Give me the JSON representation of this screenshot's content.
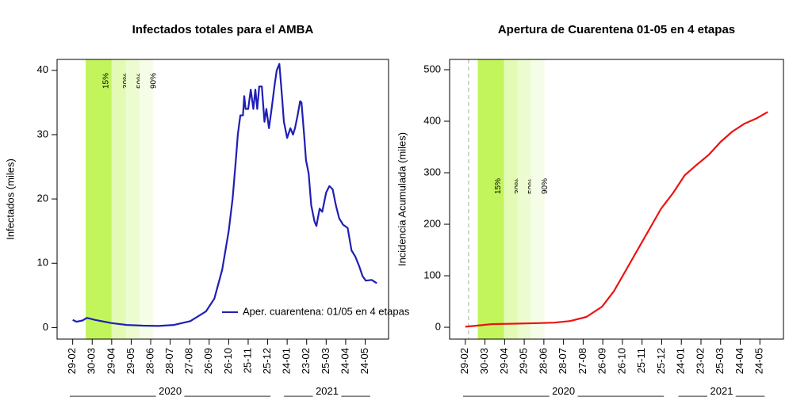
{
  "chart_data": [
    {
      "type": "line",
      "title": "Infectados totales para el AMBA",
      "y_label": "Infectados (miles)",
      "xlim": [
        -24,
        486
      ],
      "ylim": [
        -1.8,
        41.7
      ],
      "yticks": [
        0,
        10,
        20,
        30,
        40
      ],
      "xticks": [
        {
          "value": 0,
          "label": "29-02"
        },
        {
          "value": 30,
          "label": "30-03"
        },
        {
          "value": 60,
          "label": "29-04"
        },
        {
          "value": 90,
          "label": "29-05"
        },
        {
          "value": 120,
          "label": "28-06"
        },
        {
          "value": 150,
          "label": "28-07"
        },
        {
          "value": 180,
          "label": "27-08"
        },
        {
          "value": 210,
          "label": "26-09"
        },
        {
          "value": 240,
          "label": "26-10"
        },
        {
          "value": 270,
          "label": "25-11"
        },
        {
          "value": 300,
          "label": "25-12"
        },
        {
          "value": 330,
          "label": "24-01"
        },
        {
          "value": 360,
          "label": "23-02"
        },
        {
          "value": 390,
          "label": "25-03"
        },
        {
          "value": 420,
          "label": "24-04"
        },
        {
          "value": 450,
          "label": "24-05"
        }
      ],
      "year_labels": [
        "_______________ 2020 _______________",
        "_____ 2021 _____"
      ],
      "bands": [
        {
          "label": "15%",
          "start": 20,
          "end": 60,
          "color": "#c2f55c"
        },
        {
          "label": "30%",
          "start": 60,
          "end": 82,
          "color": "#e3fab5"
        },
        {
          "label": "50%",
          "start": 82,
          "end": 103,
          "color": "#edfcd0"
        },
        {
          "label": "90%",
          "start": 103,
          "end": 124,
          "color": "#f5fde8"
        }
      ],
      "legend": "bottom-right",
      "x": [
        0,
        6,
        15,
        22,
        34,
        59,
        83,
        108,
        132,
        156,
        181,
        205,
        218,
        230,
        240,
        246,
        251,
        254,
        258,
        262,
        264,
        266,
        270,
        274,
        278,
        281,
        284,
        287,
        291,
        295,
        298,
        302,
        306,
        311,
        314,
        318,
        322,
        325,
        330,
        335,
        339,
        342,
        346,
        350,
        352,
        356,
        359,
        363,
        367,
        372,
        375,
        380,
        384,
        390,
        395,
        400,
        405,
        410,
        416,
        423,
        429,
        435,
        441,
        446,
        451,
        460,
        468
      ],
      "series": [
        {
          "name": "Aper. cuarentena: 01/05 en 4 etapas",
          "color": "#1f1fb4",
          "values": [
            1.2,
            0.9,
            1.1,
            1.5,
            1.2,
            0.7,
            0.4,
            0.3,
            0.25,
            0.4,
            1.0,
            2.5,
            4.5,
            9,
            15,
            20,
            26,
            30,
            33,
            33,
            36,
            34,
            34,
            37,
            34,
            37,
            34,
            37.5,
            37.5,
            32,
            34,
            31,
            34,
            38,
            40,
            41,
            36,
            32,
            29.5,
            31,
            30,
            31,
            33,
            35.2,
            35,
            30,
            26,
            24,
            19,
            16.5,
            15.8,
            18.5,
            18,
            21,
            22,
            21.5,
            19,
            17,
            16,
            15.5,
            12,
            11,
            9.5,
            8,
            7.3,
            7.4,
            6.9
          ]
        }
      ]
    },
    {
      "type": "line",
      "title": "Apertura de Cuarentena 01-05 en 4 etapas",
      "y_label": "Incidencia Acumulada (miles)",
      "xlim": [
        -24,
        486
      ],
      "ylim": [
        -23,
        520
      ],
      "yticks": [
        0,
        100,
        200,
        300,
        400,
        500
      ],
      "xticks": [
        {
          "value": 0,
          "label": "29-02"
        },
        {
          "value": 30,
          "label": "30-03"
        },
        {
          "value": 60,
          "label": "29-04"
        },
        {
          "value": 90,
          "label": "29-05"
        },
        {
          "value": 120,
          "label": "28-06"
        },
        {
          "value": 150,
          "label": "28-07"
        },
        {
          "value": 180,
          "label": "27-08"
        },
        {
          "value": 210,
          "label": "26-09"
        },
        {
          "value": 240,
          "label": "26-10"
        },
        {
          "value": 270,
          "label": "25-11"
        },
        {
          "value": 300,
          "label": "25-12"
        },
        {
          "value": 330,
          "label": "24-01"
        },
        {
          "value": 360,
          "label": "23-02"
        },
        {
          "value": 390,
          "label": "25-03"
        },
        {
          "value": 420,
          "label": "24-04"
        },
        {
          "value": 450,
          "label": "24-05"
        }
      ],
      "year_labels": [
        "_______________ 2020 _______________",
        "_____ 2021 _____"
      ],
      "bands": [
        {
          "label": "15%",
          "start": 19,
          "end": 59,
          "color": "#c2f55c"
        },
        {
          "label": "30%",
          "start": 59,
          "end": 80,
          "color": "#e3fab5"
        },
        {
          "label": "50%",
          "start": 80,
          "end": 100,
          "color": "#edfcd0"
        },
        {
          "label": "90%",
          "start": 100,
          "end": 121,
          "color": "#f5fde8"
        }
      ],
      "vline": 5,
      "x": [
        0,
        16,
        40,
        76,
        112,
        136,
        160,
        185,
        209,
        227,
        245,
        263,
        281,
        299,
        317,
        335,
        353,
        372,
        390,
        408,
        426,
        444,
        462
      ],
      "series": [
        {
          "color": "#ee1111",
          "values": [
            1,
            3,
            6,
            7,
            8,
            9,
            12,
            20,
            40,
            70,
            110,
            150,
            190,
            230,
            260,
            295,
            315,
            335,
            360,
            380,
            395,
            405,
            418
          ]
        }
      ]
    }
  ]
}
